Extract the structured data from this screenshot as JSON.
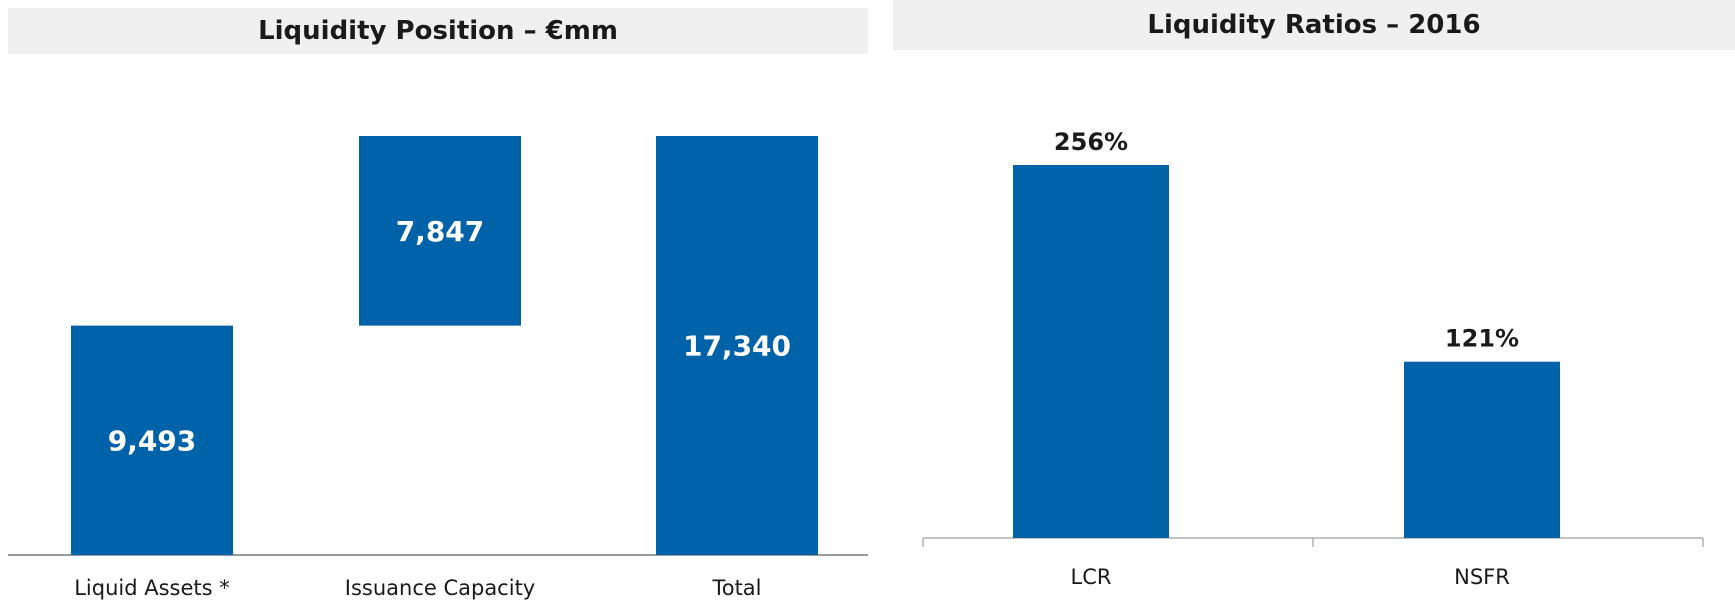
{
  "chart_data": [
    {
      "type": "bar",
      "subtype": "waterfall",
      "title": "Liquidity Position – €mm",
      "categories": [
        "Liquid Assets *",
        "Issuance Capacity",
        "Total"
      ],
      "values": [
        9493,
        7847,
        17340
      ],
      "labels": [
        "9,493",
        "7,847",
        "17,340"
      ],
      "ylim": [
        0,
        17340
      ],
      "grid": false,
      "color": "#0062a9"
    },
    {
      "type": "bar",
      "title": "Liquidity Ratios – 2016",
      "categories": [
        "LCR",
        "NSFR"
      ],
      "values": [
        256,
        121
      ],
      "labels": [
        "256%",
        "121%"
      ],
      "ylim": [
        0,
        256
      ],
      "grid": false,
      "color": "#0062a9"
    }
  ]
}
